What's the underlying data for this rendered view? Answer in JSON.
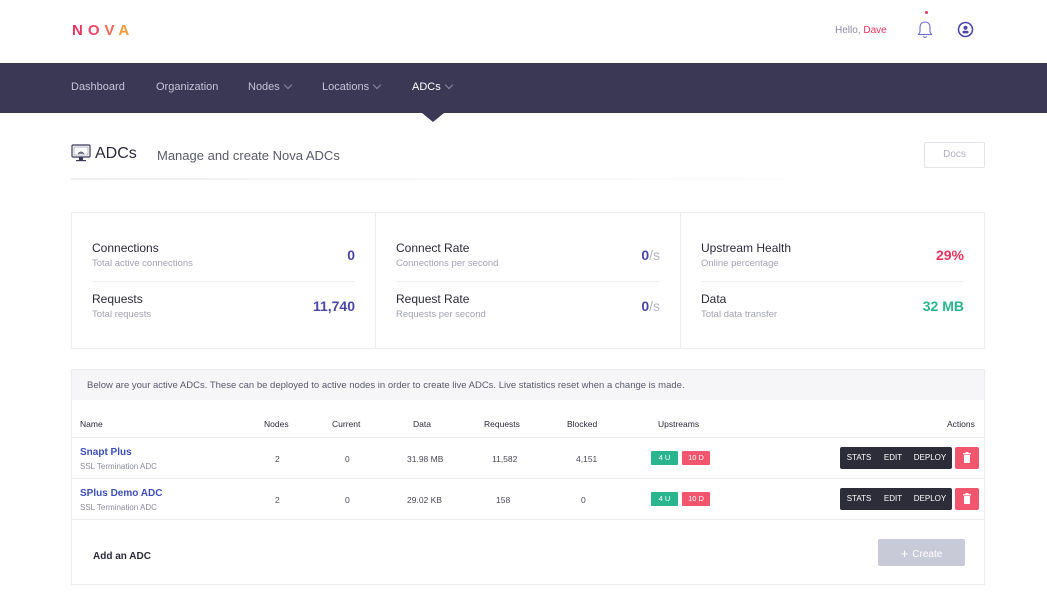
{
  "brand": {
    "logo_letters": [
      "N",
      "O",
      "V",
      "A"
    ]
  },
  "header": {
    "greeting": "Hello,",
    "user_name": "Dave"
  },
  "nav": {
    "items": [
      {
        "label": "Dashboard",
        "has_dropdown": false
      },
      {
        "label": "Organization",
        "has_dropdown": false
      },
      {
        "label": "Nodes",
        "has_dropdown": true
      },
      {
        "label": "Locations",
        "has_dropdown": true
      },
      {
        "label": "ADCs",
        "has_dropdown": true,
        "active": true
      }
    ]
  },
  "page": {
    "title": "ADCs",
    "subtitle": "Manage and create Nova ADCs",
    "docs_label": "Docs"
  },
  "stats": {
    "connections": {
      "label": "Connections",
      "sub": "Total active connections",
      "value": "0"
    },
    "requests": {
      "label": "Requests",
      "sub": "Total requests",
      "value": "11,740"
    },
    "connect_rate": {
      "label": "Connect Rate",
      "sub": "Connections per second",
      "value": "0",
      "unit": "/s"
    },
    "request_rate": {
      "label": "Request Rate",
      "sub": "Requests per second",
      "value": "0",
      "unit": "/s"
    },
    "upstream_health": {
      "label": "Upstream Health",
      "sub": "Online percentage",
      "value": "29%"
    },
    "data": {
      "label": "Data",
      "sub": "Total data transfer",
      "value": "32 MB"
    }
  },
  "colors": {
    "accent_purple": "#4b47a8",
    "danger_red": "#e8355f",
    "success_green": "#2bb58f",
    "nav_bg": "#3b3856"
  },
  "table": {
    "notice": "Below are your active ADCs. These can be deployed to active nodes in order to create live ADCs. Live statistics reset when a change is made.",
    "headers": {
      "name": "Name",
      "nodes": "Nodes",
      "current": "Current",
      "data": "Data",
      "requests": "Requests",
      "blocked": "Blocked",
      "upstreams": "Upstreams",
      "actions": "Actions"
    },
    "rows": [
      {
        "name": "Snapt Plus",
        "type": "SSL Termination ADC",
        "nodes": "2",
        "current": "0",
        "data": "31.98 MB",
        "requests": "11,582",
        "blocked": "4,151",
        "up": "4 U",
        "down": "10 D"
      },
      {
        "name": "SPlus Demo ADC",
        "type": "SSL Termination ADC",
        "nodes": "2",
        "current": "0",
        "data": "29.02 KB",
        "requests": "158",
        "blocked": "0",
        "up": "4 U",
        "down": "10 D"
      }
    ],
    "action_labels": {
      "stats": "STATS",
      "edit": "EDIT",
      "deploy": "DEPLOY"
    },
    "add_label": "Add an ADC",
    "create_label": "Create"
  }
}
